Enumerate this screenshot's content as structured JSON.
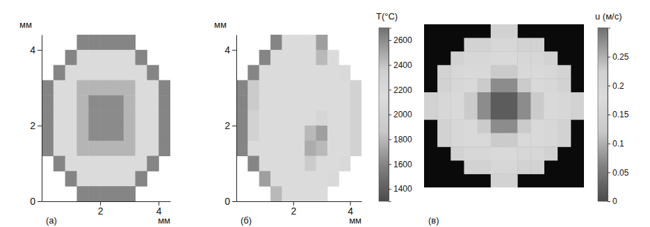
{
  "chart_data": [
    {
      "type": "heatmap",
      "label": "(а)",
      "xlabel": "мм",
      "ylabel": "мм",
      "xlim": [
        0,
        4.4
      ],
      "ylim": [
        0,
        4.4
      ],
      "xticks": [
        2,
        4
      ],
      "yticks": [
        0,
        2,
        4
      ],
      "cells": [
        [
          null,
          null,
          null,
          1600,
          1600,
          1600,
          1600,
          1600,
          null,
          null,
          null
        ],
        [
          null,
          null,
          1600,
          2150,
          2150,
          2150,
          2150,
          2150,
          1600,
          null,
          null
        ],
        [
          null,
          1600,
          2150,
          2150,
          2150,
          2150,
          2150,
          2150,
          2150,
          1600,
          null
        ],
        [
          1600,
          2150,
          2150,
          2450,
          2450,
          2450,
          2450,
          2450,
          2150,
          2150,
          1600
        ],
        [
          1600,
          2150,
          2150,
          2450,
          2600,
          2600,
          2600,
          2450,
          2150,
          2150,
          1600
        ],
        [
          1600,
          2150,
          2150,
          2450,
          2600,
          2600,
          2600,
          2450,
          2150,
          2150,
          1600
        ],
        [
          1600,
          2150,
          2150,
          2450,
          2600,
          2600,
          2600,
          2450,
          2150,
          2150,
          1600
        ],
        [
          1600,
          2150,
          2150,
          2450,
          2450,
          2450,
          2450,
          2450,
          2150,
          2150,
          1600
        ],
        [
          null,
          1600,
          2150,
          2150,
          2150,
          2150,
          2150,
          2150,
          2150,
          1600,
          null
        ],
        [
          null,
          null,
          1600,
          2150,
          2150,
          2150,
          2150,
          2150,
          1600,
          null,
          null
        ],
        [
          null,
          null,
          null,
          1600,
          1600,
          1600,
          1600,
          1600,
          null,
          null,
          null
        ]
      ]
    },
    {
      "type": "heatmap",
      "label": "(б)",
      "xlabel": "мм",
      "ylabel": "мм",
      "xlim": [
        0,
        4.4
      ],
      "ylim": [
        0,
        4.4
      ],
      "xticks": [
        2,
        4
      ],
      "yticks": [
        0,
        2,
        4
      ],
      "cells": [
        [
          null,
          null,
          null,
          1600,
          2150,
          2150,
          2150,
          1700,
          null,
          null,
          null
        ],
        [
          null,
          null,
          1600,
          2150,
          2150,
          2150,
          2150,
          1800,
          2150,
          null,
          null
        ],
        [
          null,
          1600,
          2150,
          2150,
          2150,
          2150,
          2150,
          2150,
          2150,
          2100,
          null
        ],
        [
          1600,
          1900,
          2150,
          2150,
          2150,
          2150,
          2150,
          2150,
          2150,
          2150,
          2000
        ],
        [
          1600,
          1900,
          2150,
          2150,
          2150,
          2150,
          2150,
          2150,
          2150,
          2150,
          2000
        ],
        [
          1600,
          2000,
          2150,
          2150,
          2150,
          2150,
          2150,
          2050,
          2150,
          2150,
          2000
        ],
        [
          1600,
          2000,
          2150,
          2150,
          2150,
          2150,
          1800,
          1700,
          2150,
          2150,
          2000
        ],
        [
          1600,
          2150,
          2150,
          2150,
          2150,
          2150,
          1750,
          1800,
          2150,
          2150,
          2000
        ],
        [
          null,
          1600,
          2150,
          2150,
          2150,
          2150,
          1900,
          2150,
          2150,
          2100,
          null
        ],
        [
          null,
          null,
          1700,
          2150,
          2150,
          2150,
          2150,
          2150,
          2100,
          null,
          null
        ],
        [
          null,
          null,
          null,
          1800,
          2150,
          2150,
          2150,
          2150,
          null,
          null,
          null
        ]
      ],
      "colorbar": {
        "title": "T(°C)",
        "range": [
          1300,
          2700
        ],
        "ticks": [
          1400,
          1600,
          1800,
          2000,
          2200,
          2400,
          2600
        ]
      }
    },
    {
      "type": "heatmap",
      "label": "(в)",
      "tick_labels": false,
      "cells": [
        [
          null,
          null,
          null,
          null,
          null,
          0.15,
          0.15,
          null,
          null,
          null,
          null,
          null
        ],
        [
          null,
          null,
          null,
          0.15,
          0.15,
          0.2,
          0.2,
          0.15,
          0.15,
          null,
          null,
          null
        ],
        [
          null,
          null,
          0.15,
          0.2,
          0.2,
          0.17,
          0.17,
          0.2,
          0.2,
          0.15,
          null,
          null
        ],
        [
          null,
          0.15,
          0.2,
          0.17,
          0.17,
          0.13,
          0.13,
          0.17,
          0.17,
          0.2,
          0.15,
          null
        ],
        [
          null,
          0.15,
          0.2,
          0.17,
          0.13,
          0.07,
          0.07,
          0.13,
          0.17,
          0.2,
          0.15,
          null
        ],
        [
          0.15,
          0.2,
          0.17,
          0.13,
          0.07,
          0.02,
          0.02,
          0.07,
          0.13,
          0.17,
          0.2,
          0.15
        ],
        [
          0.15,
          0.2,
          0.17,
          0.13,
          0.07,
          0.02,
          0.02,
          0.07,
          0.13,
          0.17,
          0.2,
          0.15
        ],
        [
          null,
          0.15,
          0.2,
          0.17,
          0.13,
          0.07,
          0.07,
          0.13,
          0.17,
          0.2,
          0.15,
          null
        ],
        [
          null,
          0.15,
          0.2,
          0.17,
          0.17,
          0.13,
          0.13,
          0.17,
          0.17,
          0.2,
          0.15,
          null
        ],
        [
          null,
          null,
          0.15,
          0.2,
          0.2,
          0.17,
          0.17,
          0.2,
          0.2,
          0.15,
          null,
          null
        ],
        [
          null,
          null,
          null,
          0.15,
          0.15,
          0.2,
          0.2,
          0.15,
          0.15,
          null,
          null,
          null
        ],
        [
          null,
          null,
          null,
          null,
          null,
          0.15,
          0.15,
          null,
          null,
          null,
          null,
          null
        ]
      ],
      "colorbar": {
        "title": "u (м/с)",
        "range": [
          0,
          0.3
        ],
        "ticks": [
          0,
          0.05,
          0.1,
          0.15,
          0.2,
          0.25
        ]
      }
    }
  ]
}
